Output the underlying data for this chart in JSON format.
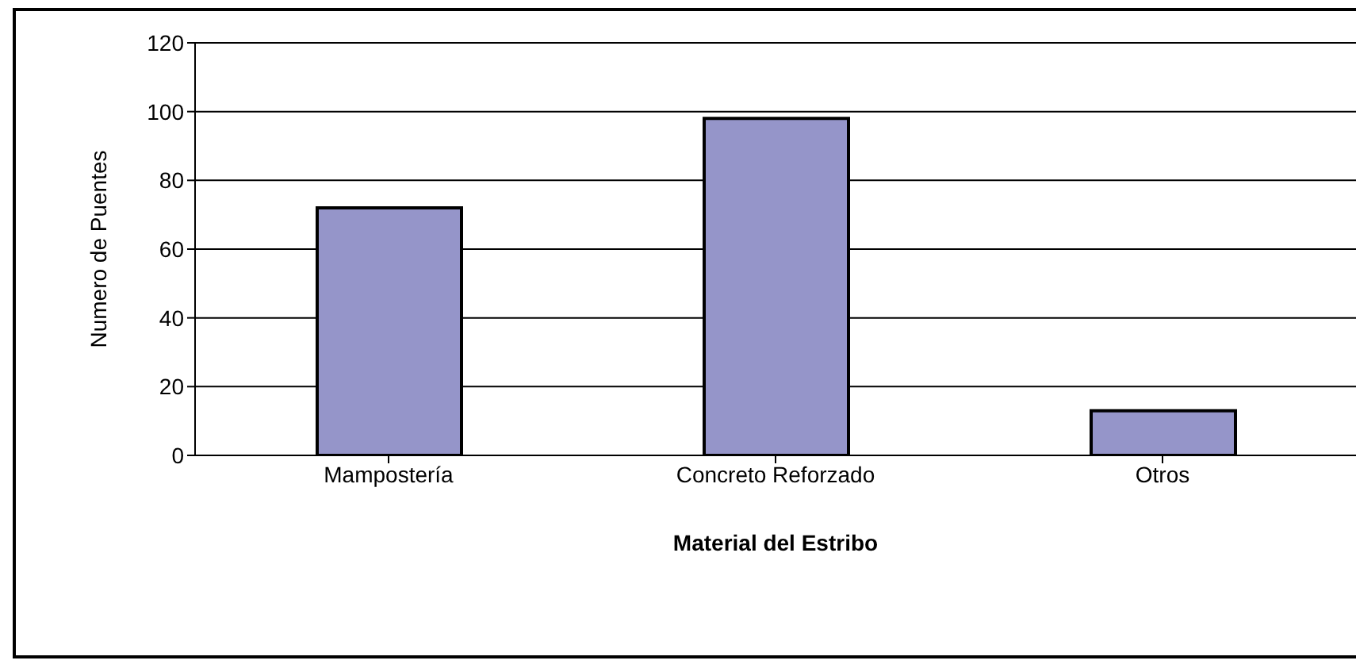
{
  "chart_data": {
    "type": "bar",
    "xlabel": "Material del Estribo",
    "ylabel": "Numero de Puentes",
    "categories": [
      "Mampostería",
      "Concreto Reforzado",
      "Otros"
    ],
    "values": [
      72,
      98,
      13
    ],
    "color": "#9595c9",
    "ylim": [
      0,
      120
    ],
    "yticks": [
      0,
      20,
      40,
      60,
      80,
      100,
      120
    ],
    "grid": "y"
  }
}
